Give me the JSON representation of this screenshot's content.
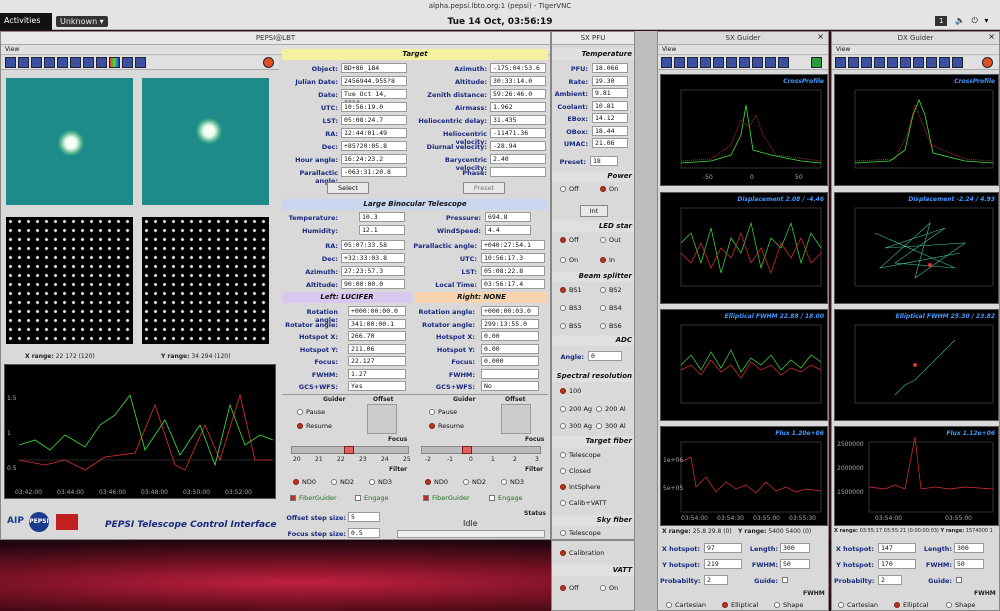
{
  "topbar": {
    "window_title": "alpha.pepsi.lbto.org:1 (pepsi) - TigerVNC",
    "activities": "Activities",
    "app_menu": "Unknown ▾",
    "clock": "Tue 14 Oct, 03:56:19",
    "counter": "1",
    "sys_icons": "🔈 ⏻ ▾"
  },
  "main": {
    "title": "PEPSI@LBT",
    "menu": "View",
    "target": {
      "header": "Target",
      "left": [
        {
          "label": "Object:",
          "value": "BD+86_184"
        },
        {
          "label": "Julian Date:",
          "value": "2456944.955?8"
        },
        {
          "label": "Date:",
          "value": "Tue Oct 14, 2314"
        },
        {
          "label": "UTC:",
          "value": "10:56:19.0"
        },
        {
          "label": "LST:",
          "value": "05:08:24.7"
        },
        {
          "label": "RA:",
          "value": "12:44:01.49"
        },
        {
          "label": "Dec:",
          "value": "+85?20:05.8"
        },
        {
          "label": "Hour angle:",
          "value": "16:24:23.2"
        },
        {
          "label": "Parallactic angle:",
          "value": "-063:31:20.8"
        }
      ],
      "right": [
        {
          "label": "Azimuth:",
          "value": "-175:04:53.6"
        },
        {
          "label": "Altitude:",
          "value": "30:33:14.0"
        },
        {
          "label": "Zenith distance:",
          "value": "59:26:46.0"
        },
        {
          "label": "Airmass:",
          "value": "1.962"
        },
        {
          "label": "Heliocentric delay:",
          "value": "31.435"
        },
        {
          "label": "Heliocentric velocity:",
          "value": "-11471.36"
        },
        {
          "label": "Diurnal velocity:",
          "value": "-28.94"
        },
        {
          "label": "Barycentric velocity:",
          "value": "2.40"
        },
        {
          "label": "Phase:",
          "value": ""
        }
      ],
      "select": "Select",
      "preset": "Preset"
    },
    "lbt": {
      "header": "Large Binocular Telescope",
      "rows1": [
        {
          "l": "Temperature:",
          "v": "10.3",
          "l2": "Pressure:",
          "v2": "694.8"
        },
        {
          "l": "Humidity:",
          "v": "12.1",
          "l2": "WindSpeed:",
          "v2": "4.4"
        }
      ],
      "rows2": [
        {
          "l": "RA:",
          "v": "05:07:33.58",
          "l2": "Parallactic angle:",
          "v2": "+040:27:54.1"
        },
        {
          "l": "Dec:",
          "v": "+32:33:03.8",
          "l2": "UTC:",
          "v2": "10:56:17.3"
        },
        {
          "l": "Azimuth:",
          "v": "27:23:57.3",
          "l2": "LST:",
          "v2": "05:08:22.8"
        },
        {
          "l": "Altitude:",
          "v": "90:00:00.0",
          "l2": "Local Time:",
          "v2": "03:56:17.4"
        }
      ]
    },
    "left_side": {
      "header": "Left: LUCIFER",
      "rows": [
        {
          "l": "Rotation angle:",
          "v": "+000:00:00.0"
        },
        {
          "l": "Rotator angle:",
          "v": "341:00:00.1"
        },
        {
          "l": "Hotspot X:",
          "v": "266.70"
        },
        {
          "l": "Hotspot Y:",
          "v": "211.06"
        },
        {
          "l": "Focus:",
          "v": "22.127"
        },
        {
          "l": "FWHM:",
          "v": "1.27"
        },
        {
          "l": "GCS+WFS:",
          "v": "Yes"
        }
      ]
    },
    "right_side": {
      "header": "Right: NONE",
      "rows": [
        {
          "l": "Rotation angle:",
          "v": "+000:00:03.0"
        },
        {
          "l": "Rotator angle:",
          "v": "299:13:55.0"
        },
        {
          "l": "Hotspot X:",
          "v": "0.00"
        },
        {
          "l": "Hotspot Y:",
          "v": "0.00"
        },
        {
          "l": "Focus:",
          "v": "0.000"
        },
        {
          "l": "FWHM:",
          "v": ""
        },
        {
          "l": "GCS+WFS:",
          "v": "No"
        }
      ]
    },
    "guider": "Guider",
    "offset": "Offset",
    "pause": "Pause",
    "resume": "Resume",
    "focus": "Focus",
    "filter": "Filter",
    "focus_ticks_left": [
      "20",
      "21",
      "22",
      "23",
      "24",
      "25"
    ],
    "focus_ticks_right": [
      "-2",
      "-1",
      "0",
      "1",
      "2",
      "3"
    ],
    "nd": [
      "ND0",
      "ND2",
      "ND3"
    ],
    "fiberguider": "FiberGuider",
    "engage": "Engage",
    "offset_step": "Offset step size:",
    "offset_step_v": "5",
    "focus_step": "Focus step size:",
    "focus_step_v": "0.5",
    "status": "Status",
    "status_v": "Idle",
    "brand": "PEPSI Telescope Control Interface",
    "aip": "AIP",
    "pepsi": "PEPSI",
    "xrange": "X range:",
    "xrange_v": "22 172 (120)",
    "yrange": "Y range:",
    "yrange_v": "34 294 (120)",
    "plot_y": [
      "1.5",
      "1",
      "0.5"
    ],
    "plot_x": [
      "03:42:00",
      "03:44:00",
      "03:46:00",
      "03:48:00",
      "03:50:00",
      "03:52:00"
    ]
  },
  "pfu": {
    "title": "SX PFU",
    "temp": "Temperature",
    "rows": [
      {
        "l": "PFU:",
        "v": "18.066"
      },
      {
        "l": "Rate:",
        "v": "19.30"
      },
      {
        "l": "Ambient:",
        "v": "9.81"
      },
      {
        "l": "Coolant:",
        "v": "10.81"
      },
      {
        "l": "EBox:",
        "v": "14.12"
      },
      {
        "l": "OBox:",
        "v": "18.44"
      },
      {
        "l": "UMAC:",
        "v": "21.06"
      }
    ],
    "preset": "Preset:",
    "preset_v": "18",
    "power": "Power",
    "off": "Off",
    "on": "On",
    "int": "Int",
    "led": "LED star",
    "out": "Out",
    "in": "In",
    "beam": "Beam splitter",
    "bs": [
      "BS1",
      "BS2",
      "BS3",
      "BS4",
      "BS5",
      "BS6"
    ],
    "adc": "ADC",
    "angle": "Angle:",
    "angle_v": "0",
    "spec": "Spectral resolution",
    "res": [
      "100",
      "200 Ag",
      "200 Al",
      "300 Ag",
      "300 Al"
    ],
    "tfiber": "Target fiber",
    "tf": [
      "Telescope",
      "Closed",
      "IntSphere",
      "Calib+VATT"
    ],
    "sky": "Sky fiber",
    "sf": [
      "Telescope",
      "Calibration"
    ],
    "vatt": "VATT"
  },
  "sxg": {
    "title": "SX Guider",
    "menu": "View",
    "p1": "CrossProfile",
    "p1x": [
      "-50",
      "0",
      "50"
    ],
    "p2": "Displacement 2.08 / -4.46",
    "p3": "Elliptical FWHM 22.88 / 18.00",
    "p4": "Flux 1.20e+06",
    "p4y": [
      "1e+06",
      "5e+05"
    ],
    "tx": [
      "03:54:00",
      "03:54:30",
      "03:55:00",
      "03:55:30"
    ],
    "xrange": "X range:",
    "xrange_v": "25.8 29.8 (0)",
    "yrange": "Y range:",
    "yrange_v": "5400 5400 (0)",
    "xhot": "X hotspot:",
    "xhot_v": "97",
    "yhot": "Y hotspot:",
    "yhot_v": "219",
    "len": "Length:",
    "len_v": "300",
    "fwhm": "FWHM:",
    "fwhm_v": "50",
    "prob": "Probabilty:",
    "prob_v": "2",
    "guide": "Guide:",
    "fwhm_hdr": "FWHM",
    "cart": "Cartesian",
    "ell": "Elliptical",
    "shape": "Shape"
  },
  "dxg": {
    "title": "DX Guider",
    "menu": "View",
    "p1": "CrossProfile",
    "p2": "Displacement -2.24 / 4.93",
    "p3": "Elliptical FWHM 25.30 / 23.82",
    "p4": "Flux 1.12e+06",
    "p4y": [
      "2500000",
      "2000000",
      "1500000"
    ],
    "tx": [
      "03:54:00",
      "03:55:00"
    ],
    "xrange": "X range:",
    "xrange_v": "03:55:17 03:55:21 (0:00:00:03)",
    "yrange": "Y range:",
    "yrange_v": "1574000 1",
    "xhot": "X hotspot:",
    "xhot_v": "147",
    "yhot": "Y hotspot:",
    "yhot_v": "170",
    "len": "Length:",
    "len_v": "300",
    "fwhm": "FWHM:",
    "fwhm_v": "50",
    "prob": "Probabilty:",
    "prob_v": "2",
    "guide": "Guide:",
    "fwhm_hdr": "FWHM",
    "cart": "Cartesian",
    "ell": "Elliptcal",
    "shape": "Shape"
  },
  "colors": {
    "green": "#40e040",
    "red": "#e03030",
    "cyan": "#40e0c0",
    "accent": "#3a4fa0"
  }
}
